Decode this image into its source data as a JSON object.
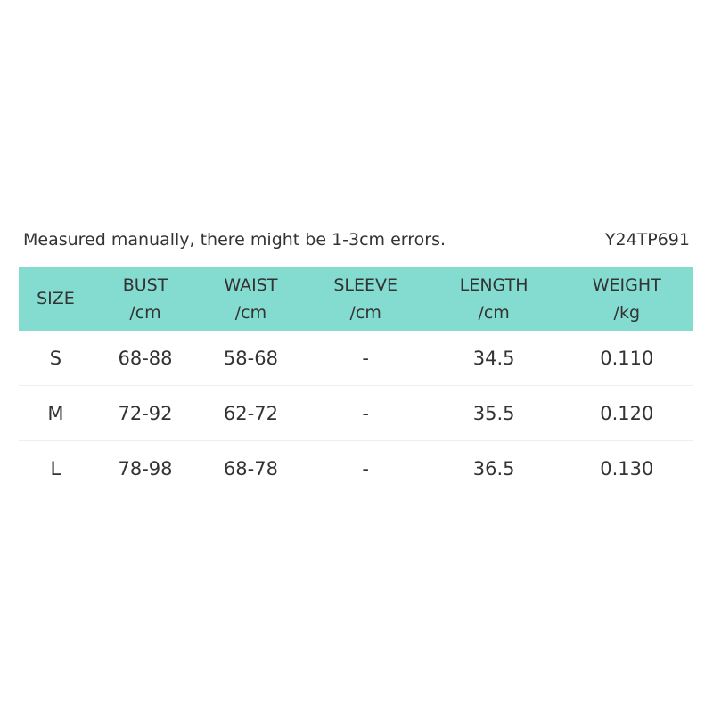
{
  "note": "Measured manually, there might be 1-3cm errors.",
  "code": "Y24TP691",
  "table": {
    "header": [
      [
        "SIZE"
      ],
      [
        "BUST",
        "/cm"
      ],
      [
        "WAIST",
        "/cm"
      ],
      [
        "SLEEVE",
        "/cm"
      ],
      [
        "LENGTH",
        "/cm"
      ],
      [
        "WEIGHT",
        "/kg"
      ]
    ],
    "rows": [
      [
        "S",
        "68-88",
        "58-68",
        "-",
        "34.5",
        "0.110"
      ],
      [
        "M",
        "72-92",
        "62-72",
        "-",
        "35.5",
        "0.120"
      ],
      [
        "L",
        "78-98",
        "68-78",
        "-",
        "36.5",
        "0.130"
      ]
    ]
  }
}
